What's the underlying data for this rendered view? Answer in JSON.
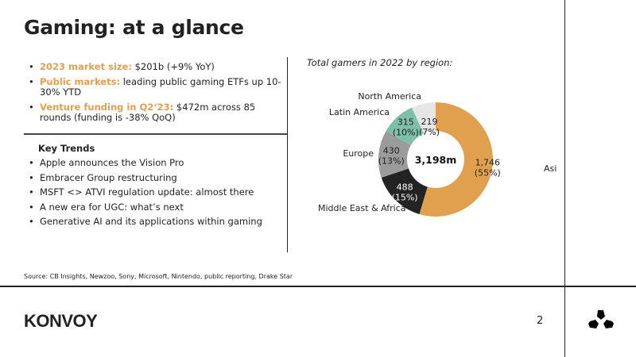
{
  "title": "Gaming: at a glance",
  "highlights": [
    {
      "label": "2023 market size:",
      "text": " $201b (+9% YoY)"
    },
    {
      "label": "Public markets:",
      "text": " leading public gaming ETFs up 10-30% YTD"
    },
    {
      "label": "Venture funding in Q2‘23:",
      "text": " $472m across 85 rounds (funding is -38% QoQ)"
    }
  ],
  "key_trends": {
    "heading": "Key Trends",
    "items": [
      "Apple announces the Vision Pro",
      "Embracer Group restructuring",
      "MSFT <> ATVI regulation update: almost there",
      "A new era for UGC: what’s next",
      "Generative AI and its applications within gaming"
    ]
  },
  "chart_data": {
    "type": "pie",
    "title": "Total gamers in 2022 by region:",
    "center_label": "3,198m",
    "unit": "m",
    "slices": [
      {
        "name": "Asia-Pacific",
        "value": 1746,
        "value_label": "1,746",
        "pct": "(55%)",
        "color": "#E0A04E"
      },
      {
        "name": "Middle East & Africa",
        "value": 488,
        "value_label": "488",
        "pct": "(15%)",
        "color": "#232323"
      },
      {
        "name": "Europe",
        "value": 430,
        "value_label": "430",
        "pct": "(13%)",
        "color": "#9B9B9B"
      },
      {
        "name": "Latin America",
        "value": 315,
        "value_label": "315",
        "pct": "(10%)",
        "color": "#7DBFA8"
      },
      {
        "name": "North America",
        "value": 219,
        "value_label": "219",
        "pct": "(7%)",
        "color": "#E6E6E6"
      }
    ]
  },
  "source": "Source: CB Insights, Newzoo, Sony, Microsoft, Nintendo, public reporting, Drake Star",
  "logo": "KONVOY",
  "page_number": "2"
}
